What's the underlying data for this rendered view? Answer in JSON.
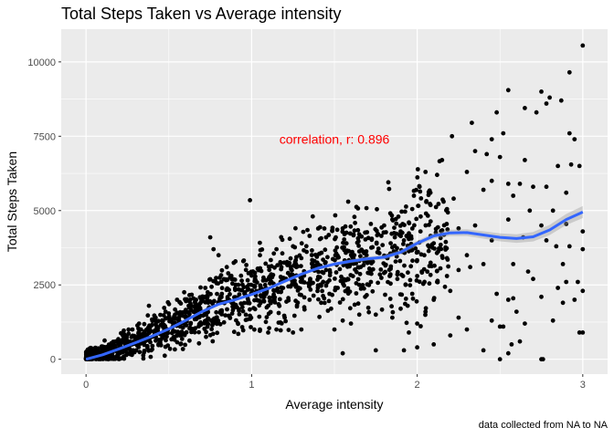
{
  "chart_data": {
    "type": "scatter",
    "title": "Total Steps Taken vs Average intensity",
    "xlabel": "Average intensity",
    "ylabel": "Total Steps Taken",
    "caption": "data collected from NA to NA",
    "annotation": {
      "text": "correlation, r: 0.896",
      "x": 1.5,
      "y": 7400,
      "color": "#ff0000"
    },
    "xlim": [
      -0.15,
      3.15
    ],
    "ylim": [
      -500,
      11100
    ],
    "x_ticks": [
      0,
      1,
      2,
      3
    ],
    "x_tick_labels": [
      "0",
      "1",
      "2",
      "3"
    ],
    "y_ticks": [
      0,
      2500,
      5000,
      7500,
      10000
    ],
    "y_tick_labels": [
      "0",
      "2500",
      "5000",
      "7500",
      "10000"
    ],
    "grid": true,
    "background": "#ebebeb",
    "point_color": "#000000",
    "smooth_color": "#3366ff",
    "points_dense_description_count": 0,
    "points": [
      [
        3.0,
        10550
      ],
      [
        2.92,
        9650
      ],
      [
        2.75,
        9000
      ],
      [
        2.8,
        8800
      ],
      [
        2.78,
        8600
      ],
      [
        2.65,
        8450
      ],
      [
        2.55,
        9050
      ],
      [
        2.48,
        8300
      ],
      [
        2.45,
        7400
      ],
      [
        2.33,
        7950
      ],
      [
        2.87,
        8700
      ],
      [
        2.72,
        8300
      ],
      [
        2.92,
        7600
      ],
      [
        2.95,
        7400
      ],
      [
        2.21,
        7500
      ],
      [
        2.52,
        7600
      ],
      [
        2.15,
        6700
      ],
      [
        2.35,
        7000
      ],
      [
        2.42,
        6900
      ],
      [
        2.5,
        6800
      ],
      [
        2.65,
        6700
      ],
      [
        2.85,
        6500
      ],
      [
        2.93,
        6550
      ],
      [
        2.98,
        6500
      ],
      [
        2.05,
        6300
      ],
      [
        2.12,
        6200
      ],
      [
        2.3,
        6300
      ],
      [
        2.45,
        6000
      ],
      [
        2.55,
        5900
      ],
      [
        2.62,
        5900
      ],
      [
        2.7,
        5800
      ],
      [
        2.78,
        5800
      ],
      [
        2.9,
        5600
      ],
      [
        2.82,
        5000
      ],
      [
        2.68,
        5000
      ],
      [
        2.58,
        5500
      ],
      [
        2.4,
        5700
      ],
      [
        2.22,
        5400
      ],
      [
        2.08,
        5600
      ],
      [
        1.98,
        5500
      ],
      [
        0.99,
        5350
      ],
      [
        1.97,
        5050
      ],
      [
        2.25,
        4400
      ],
      [
        2.35,
        4500
      ],
      [
        2.55,
        4700
      ],
      [
        2.75,
        4500
      ],
      [
        2.9,
        4550
      ],
      [
        3.0,
        4300
      ],
      [
        3.0,
        3700
      ],
      [
        2.92,
        3800
      ],
      [
        2.84,
        3800
      ],
      [
        2.78,
        4000
      ],
      [
        2.64,
        4100
      ],
      [
        2.45,
        4000
      ],
      [
        2.3,
        3500
      ],
      [
        2.18,
        3400
      ],
      [
        2.1,
        3900
      ],
      [
        2.02,
        4300
      ],
      [
        1.95,
        4600
      ],
      [
        1.9,
        4300
      ],
      [
        1.85,
        4700
      ],
      [
        1.8,
        4500
      ],
      [
        1.72,
        4550
      ],
      [
        1.65,
        4200
      ],
      [
        1.55,
        4400
      ],
      [
        1.45,
        4100
      ],
      [
        1.35,
        4150
      ],
      [
        1.25,
        3800
      ],
      [
        1.15,
        3700
      ],
      [
        1.05,
        3500
      ],
      [
        0.95,
        3300
      ],
      [
        0.85,
        3100
      ],
      [
        0.77,
        3700
      ],
      [
        0.75,
        4100
      ],
      [
        0.8,
        3500
      ],
      [
        2.67,
        2950
      ],
      [
        2.7,
        2700
      ],
      [
        2.75,
        2100
      ],
      [
        2.55,
        2000
      ],
      [
        2.58,
        2050
      ],
      [
        2.48,
        2200
      ],
      [
        2.2,
        2300
      ],
      [
        2.1,
        2000
      ],
      [
        2.05,
        1600
      ],
      [
        2.9,
        2600
      ],
      [
        2.85,
        2400
      ],
      [
        3.0,
        2300
      ],
      [
        2.97,
        2600
      ],
      [
        2.82,
        1300
      ],
      [
        2.6,
        1600
      ],
      [
        2.5,
        1100
      ],
      [
        2.45,
        1300
      ],
      [
        2.52,
        1100
      ],
      [
        2.3,
        1000
      ],
      [
        2.25,
        1400
      ],
      [
        2.0,
        1200
      ],
      [
        1.95,
        900
      ],
      [
        1.9,
        1700
      ],
      [
        1.85,
        1400
      ],
      [
        1.75,
        1500
      ],
      [
        1.65,
        1500
      ],
      [
        1.6,
        1200
      ],
      [
        1.55,
        1300
      ],
      [
        1.5,
        1000
      ],
      [
        1.48,
        1700
      ],
      [
        1.42,
        1900
      ],
      [
        1.35,
        2000
      ],
      [
        1.3,
        1000
      ],
      [
        1.25,
        900
      ],
      [
        1.2,
        1400
      ],
      [
        1.15,
        1000
      ],
      [
        1.1,
        900
      ],
      [
        1.05,
        1000
      ],
      [
        2.95,
        2000
      ],
      [
        2.88,
        1900
      ],
      [
        2.62,
        600
      ],
      [
        2.57,
        500
      ],
      [
        2.65,
        1200
      ],
      [
        2.98,
        900
      ],
      [
        3.0,
        900
      ],
      [
        2.55,
        200
      ],
      [
        2.75,
        0
      ],
      [
        2.76,
        0
      ],
      [
        2.5,
        0
      ],
      [
        2.0,
        400
      ],
      [
        1.92,
        300
      ],
      [
        1.75,
        300
      ],
      [
        1.55,
        200
      ],
      [
        2.4,
        300
      ],
      [
        2.2,
        800
      ],
      [
        2.1,
        500
      ],
      [
        1.97,
        2200
      ],
      [
        2.0,
        2800
      ],
      [
        1.93,
        2500
      ],
      [
        1.88,
        2700
      ],
      [
        1.8,
        2900
      ],
      [
        1.72,
        2600
      ],
      [
        1.65,
        2500
      ],
      [
        1.58,
        2700
      ],
      [
        1.52,
        2400
      ],
      [
        1.47,
        2200
      ],
      [
        1.4,
        2400
      ],
      [
        2.25,
        3000
      ],
      [
        2.18,
        2800
      ],
      [
        2.12,
        2600
      ],
      [
        2.4,
        3200
      ],
      [
        2.32,
        3100
      ],
      [
        2.58,
        3200
      ],
      [
        2.88,
        3200
      ],
      [
        1.22,
        2900
      ],
      [
        1.12,
        2600
      ],
      [
        1.02,
        2700
      ],
      [
        0.92,
        2500
      ],
      [
        0.82,
        2200
      ],
      [
        0.72,
        2400
      ],
      [
        0.62,
        1800
      ],
      [
        0.55,
        2000
      ],
      [
        0.48,
        1600
      ],
      [
        0.42,
        1400
      ],
      [
        0.38,
        1800
      ],
      [
        0.32,
        1200
      ],
      [
        0.28,
        1000
      ],
      [
        1.62,
        3500
      ],
      [
        1.68,
        3300
      ],
      [
        1.76,
        3600
      ],
      [
        1.84,
        3900
      ],
      [
        1.92,
        4000
      ],
      [
        1.56,
        3200
      ],
      [
        1.45,
        3000
      ],
      [
        1.38,
        3300
      ],
      [
        1.3,
        3400
      ],
      [
        1.18,
        3100
      ]
    ],
    "smooth": [
      [
        0.0,
        0
      ],
      [
        0.1,
        150
      ],
      [
        0.2,
        350
      ],
      [
        0.3,
        560
      ],
      [
        0.4,
        780
      ],
      [
        0.5,
        1020
      ],
      [
        0.6,
        1300
      ],
      [
        0.7,
        1600
      ],
      [
        0.8,
        1850
      ],
      [
        0.9,
        2000
      ],
      [
        1.0,
        2180
      ],
      [
        1.1,
        2380
      ],
      [
        1.2,
        2620
      ],
      [
        1.3,
        2860
      ],
      [
        1.4,
        3060
      ],
      [
        1.5,
        3200
      ],
      [
        1.6,
        3300
      ],
      [
        1.7,
        3380
      ],
      [
        1.8,
        3430
      ],
      [
        1.9,
        3600
      ],
      [
        2.0,
        3900
      ],
      [
        2.1,
        4150
      ],
      [
        2.2,
        4250
      ],
      [
        2.3,
        4260
      ],
      [
        2.4,
        4180
      ],
      [
        2.5,
        4100
      ],
      [
        2.6,
        4060
      ],
      [
        2.7,
        4120
      ],
      [
        2.8,
        4350
      ],
      [
        2.9,
        4700
      ],
      [
        3.0,
        4950
      ]
    ]
  }
}
